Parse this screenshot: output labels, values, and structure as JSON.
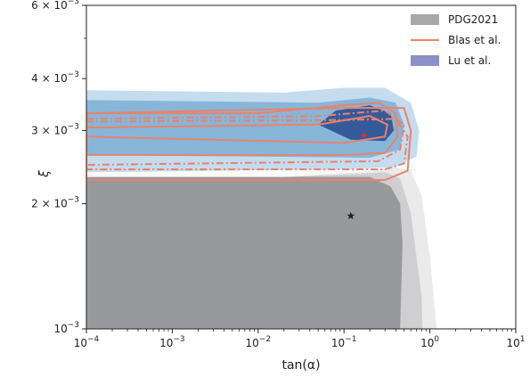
{
  "chart_data": {
    "type": "contour",
    "xlabel": "tan(α)",
    "ylabel": "ξ",
    "xscale": "log",
    "yscale": "log",
    "xlim": [
      0.0001,
      10
    ],
    "ylim": [
      0.001,
      0.006
    ],
    "x_ticks": [
      {
        "value": 0.0001,
        "base": "10",
        "exp": "−4"
      },
      {
        "value": 0.001,
        "base": "10",
        "exp": "−3"
      },
      {
        "value": 0.01,
        "base": "10",
        "exp": "−2"
      },
      {
        "value": 0.1,
        "base": "10",
        "exp": "−1"
      },
      {
        "value": 1,
        "base": "10",
        "exp": "0"
      },
      {
        "value": 10,
        "base": "10",
        "exp": "1"
      }
    ],
    "y_ticks": [
      {
        "value": 0.001,
        "base": "10",
        "exp": "−3",
        "mant": ""
      },
      {
        "value": 0.002,
        "base": "10",
        "exp": "−3",
        "mant": "2 × "
      },
      {
        "value": 0.003,
        "base": "10",
        "exp": "−3",
        "mant": "3 × "
      },
      {
        "value": 0.004,
        "base": "10",
        "exp": "−3",
        "mant": "4 × "
      },
      {
        "value": 0.006,
        "base": "10",
        "exp": "−3",
        "mant": "6 × "
      }
    ],
    "legend_position": "top-right",
    "series": [
      {
        "name": "PDG2021",
        "style": "filled-gray",
        "color": "#a8a8ab",
        "levels": [
          {
            "alpha": 0.2,
            "color": "#eaeaea",
            "boundary": [
              [
                0.0001,
                0.001
              ],
              [
                0.0001,
                0.00232
              ],
              [
                0.02,
                0.00232
              ],
              [
                0.15,
                0.00238
              ],
              [
                0.4,
                0.00245
              ],
              [
                0.6,
                0.0024
              ],
              [
                0.8,
                0.0021
              ],
              [
                1.0,
                0.0015
              ],
              [
                1.2,
                0.001
              ]
            ]
          },
          {
            "alpha": 0.5,
            "color": "#cfcfd1",
            "boundary": [
              [
                0.0001,
                0.001
              ],
              [
                0.0001,
                0.00232
              ],
              [
                0.02,
                0.00232
              ],
              [
                0.15,
                0.00236
              ],
              [
                0.3,
                0.00238
              ],
              [
                0.45,
                0.0023
              ],
              [
                0.6,
                0.0019
              ],
              [
                0.8,
                0.0012
              ],
              [
                0.82,
                0.001
              ]
            ]
          },
          {
            "alpha": 1.0,
            "color": "#98999c",
            "boundary": [
              [
                0.0001,
                0.001
              ],
              [
                0.0001,
                0.00232
              ],
              [
                0.05,
                0.00232
              ],
              [
                0.2,
                0.00232
              ],
              [
                0.35,
                0.0022
              ],
              [
                0.45,
                0.002
              ],
              [
                0.48,
                0.0016
              ],
              [
                0.45,
                0.001
              ]
            ]
          }
        ],
        "best_fit": {
          "x": 0.12,
          "y": 0.00187,
          "marker": "star"
        }
      },
      {
        "name": "Blas et al.",
        "style": "line",
        "color": "#e8836c",
        "lines": [
          {
            "style": "solid",
            "points": [
              [
                0.0001,
                0.0033
              ],
              [
                0.01,
                0.0033
              ],
              [
                0.1,
                0.00345
              ],
              [
                0.25,
                0.0035
              ],
              [
                0.4,
                0.0033
              ],
              [
                0.42,
                0.0029
              ],
              [
                0.3,
                0.00265
              ],
              [
                0.1,
                0.00262
              ],
              [
                0.0001,
                0.00262
              ]
            ]
          },
          {
            "style": "solid",
            "points": [
              [
                0.0001,
                0.00305
              ],
              [
                0.05,
                0.0031
              ],
              [
                0.2,
                0.00325
              ],
              [
                0.32,
                0.0031
              ],
              [
                0.3,
                0.0029
              ],
              [
                0.1,
                0.0028
              ],
              [
                0.0001,
                0.0029
              ]
            ]
          },
          {
            "style": "dashdot",
            "points": [
              [
                0.0001,
                0.0032
              ],
              [
                0.05,
                0.00325
              ],
              [
                0.3,
                0.00335
              ],
              [
                0.5,
                0.0031
              ],
              [
                0.45,
                0.0027
              ],
              [
                0.25,
                0.00253
              ],
              [
                0.0001,
                0.00248
              ]
            ]
          },
          {
            "style": "dashdot",
            "points": [
              [
                0.0001,
                0.00315
              ],
              [
                0.1,
                0.00318
              ],
              [
                0.4,
                0.0032
              ],
              [
                0.55,
                0.0029
              ],
              [
                0.5,
                0.0025
              ],
              [
                0.3,
                0.00242
              ],
              [
                0.0001,
                0.00242
              ]
            ]
          },
          {
            "style": "solid",
            "points": [
              [
                0.0001,
                0.0033
              ],
              [
                0.1,
                0.0034
              ],
              [
                0.5,
                0.0034
              ],
              [
                0.6,
                0.003
              ],
              [
                0.55,
                0.0024
              ],
              [
                0.3,
                0.00228
              ],
              [
                0.0001,
                0.00228
              ]
            ]
          }
        ],
        "best_fit": {
          "x": 0.17,
          "y": 0.00292,
          "marker": "plus"
        }
      },
      {
        "name": "Lu et al.",
        "style": "filled-blue",
        "color": "#8b90c8",
        "levels": [
          {
            "alpha": 0.3,
            "color": "#c5dcef",
            "boundary": [
              [
                0.0001,
                0.00238
              ],
              [
                0.0001,
                0.00375
              ],
              [
                0.02,
                0.0037
              ],
              [
                0.1,
                0.0038
              ],
              [
                0.3,
                0.0038
              ],
              [
                0.6,
                0.0035
              ],
              [
                0.75,
                0.003
              ],
              [
                0.7,
                0.0026
              ],
              [
                0.4,
                0.00245
              ],
              [
                0.1,
                0.00242
              ],
              [
                0.0001,
                0.00238
              ]
            ]
          },
          {
            "alpha": 0.6,
            "color": "#87b6d9",
            "boundary": [
              [
                0.0001,
                0.00262
              ],
              [
                0.0001,
                0.00355
              ],
              [
                0.05,
                0.0035
              ],
              [
                0.2,
                0.0036
              ],
              [
                0.4,
                0.0035
              ],
              [
                0.5,
                0.0031
              ],
              [
                0.45,
                0.0027
              ],
              [
                0.2,
                0.00258
              ],
              [
                0.0001,
                0.00262
              ]
            ]
          },
          {
            "alpha": 1.0,
            "color": "#355a99",
            "boundary": [
              [
                0.05,
                0.0031
              ],
              [
                0.08,
                0.00335
              ],
              [
                0.2,
                0.00345
              ],
              [
                0.35,
                0.0033
              ],
              [
                0.38,
                0.003
              ],
              [
                0.3,
                0.00283
              ],
              [
                0.12,
                0.00285
              ],
              [
                0.05,
                0.0031
              ]
            ]
          }
        ]
      }
    ]
  }
}
